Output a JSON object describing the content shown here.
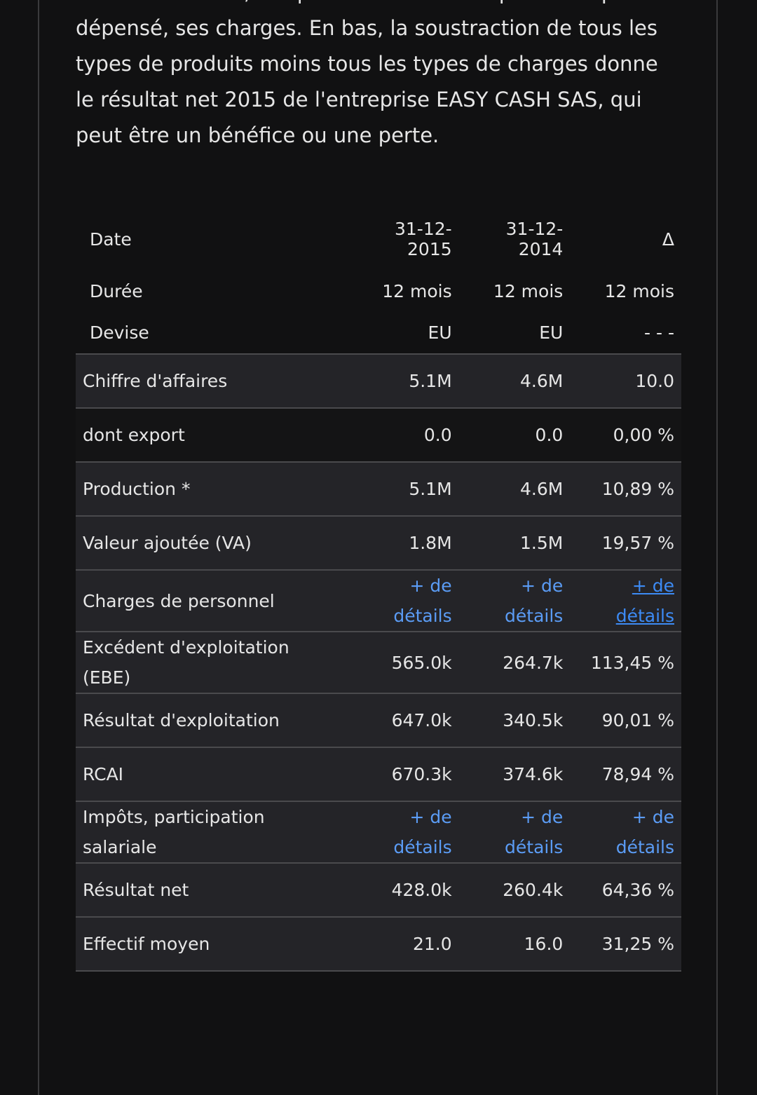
{
  "intro": {
    "lines": [
      "cours de l'année, ses produits et tout ce que l'entreprise a",
      "dépensé, ses charges. En bas, la soustraction de tous les",
      "types de produits moins tous les types de charges donne",
      "le résultat net 2015 de l'entreprise EASY CASH SAS, qui",
      "peut être un bénéfice ou une perte."
    ]
  },
  "table": {
    "header": [
      [
        "Date",
        "31-12-2015",
        "31-12-2014",
        "Δ"
      ],
      [
        "Durée",
        "12 mois",
        "12 mois",
        "12 mois"
      ],
      [
        "Devise",
        "EU",
        "EU",
        "- - -"
      ]
    ],
    "rows": [
      [
        "Chiffre d'affaires",
        "5.1M",
        "4.6M",
        "10.0"
      ],
      [
        "dont export",
        "0.0",
        "0.0",
        "0,00 %"
      ],
      [
        "Production *",
        "5.1M",
        "4.6M",
        "10,89 %"
      ],
      [
        "Valeur ajoutée (VA)",
        "1.8M",
        "1.5M",
        "19,57 %"
      ],
      [
        "Charges de personnel",
        "+ de détails",
        "+ de détails",
        "+ de détails"
      ],
      [
        "Excédent d'exploitation (EBE)",
        "565.0k",
        "264.7k",
        "113,45 %"
      ],
      [
        "Résultat d'exploitation",
        "647.0k",
        "340.5k",
        "90,01 %"
      ],
      [
        "RCAI",
        "670.3k",
        "374.6k",
        "78,94 %"
      ],
      [
        "Impôts, participation salariale",
        "+ de détails",
        "+ de détails",
        "+ de détails"
      ],
      [
        "Résultat net",
        "428.0k",
        "260.4k",
        "64,36 %"
      ],
      [
        "Effectif moyen",
        "21.0",
        "16.0",
        "31,25 %"
      ]
    ]
  }
}
